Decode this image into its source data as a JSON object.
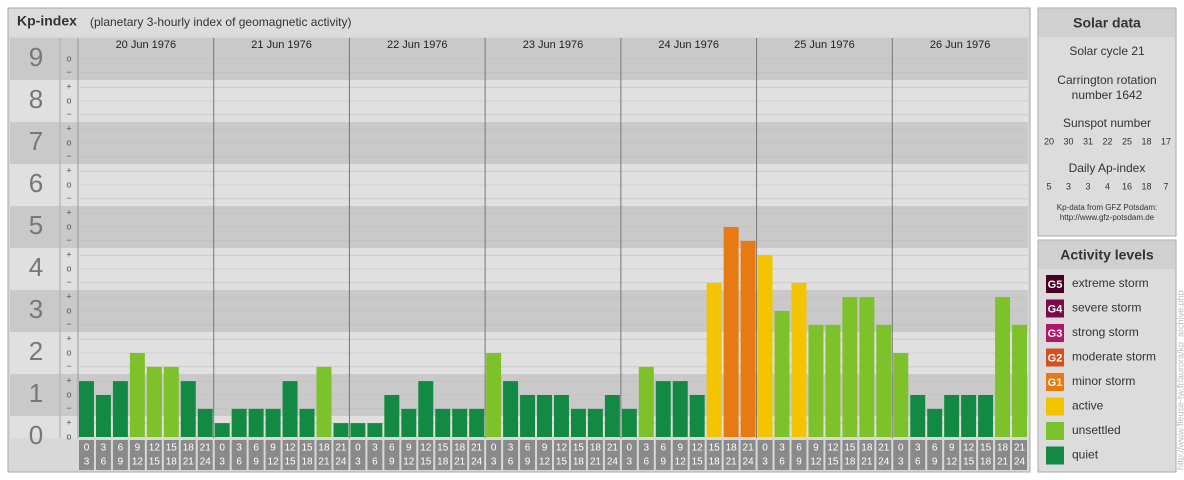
{
  "chart_data": {
    "type": "bar",
    "title": "Kp-index",
    "subtitle": "(planetary 3-hourly index of geomagnetic activity)",
    "days": [
      "20 Jun 1976",
      "21 Jun 1976",
      "22 Jun 1976",
      "23 Jun 1976",
      "24 Jun 1976",
      "25 Jun 1976",
      "26 Jun 1976"
    ],
    "hour_labels": [
      [
        "0",
        "3"
      ],
      [
        "3",
        "6"
      ],
      [
        "6",
        "9"
      ],
      [
        "9",
        "12"
      ],
      [
        "12",
        "15"
      ],
      [
        "15",
        "18"
      ],
      [
        "18",
        "21"
      ],
      [
        "21",
        "24"
      ]
    ],
    "values": [
      1.33,
      1,
      1.33,
      2,
      1.67,
      1.67,
      1.33,
      0.67,
      0.33,
      0.67,
      0.67,
      0.67,
      1.33,
      0.67,
      1.67,
      0.33,
      0.33,
      0.33,
      1,
      0.67,
      1.33,
      0.67,
      0.67,
      0.67,
      2,
      1.33,
      1,
      1,
      1,
      0.67,
      0.67,
      1,
      0.67,
      1.67,
      1.33,
      1.33,
      1,
      3.67,
      5,
      4.67,
      4.33,
      3,
      3.67,
      2.67,
      2.67,
      3.33,
      3.33,
      2.67,
      2,
      1,
      0.67,
      1,
      1,
      1,
      3.33,
      2.67
    ],
    "colors": [
      "#138a43",
      "#138a43",
      "#138a43",
      "#7dc12b",
      "#7dc12b",
      "#7dc12b",
      "#138a43",
      "#138a43",
      "#138a43",
      "#138a43",
      "#138a43",
      "#138a43",
      "#138a43",
      "#138a43",
      "#7dc12b",
      "#138a43",
      "#138a43",
      "#138a43",
      "#138a43",
      "#138a43",
      "#138a43",
      "#138a43",
      "#138a43",
      "#138a43",
      "#7dc12b",
      "#138a43",
      "#138a43",
      "#138a43",
      "#138a43",
      "#138a43",
      "#138a43",
      "#138a43",
      "#138a43",
      "#7dc12b",
      "#138a43",
      "#138a43",
      "#138a43",
      "#f5c400",
      "#e87a12",
      "#e87a12",
      "#f5c400",
      "#7dc12b",
      "#f5c400",
      "#7dc12b",
      "#7dc12b",
      "#7dc12b",
      "#7dc12b",
      "#7dc12b",
      "#7dc12b",
      "#138a43",
      "#138a43",
      "#138a43",
      "#138a43",
      "#138a43",
      "#7dc12b",
      "#7dc12b"
    ],
    "ylim": [
      0,
      9.5
    ],
    "yticks": [
      0,
      1,
      2,
      3,
      4,
      5,
      6,
      7,
      8,
      9
    ],
    "minor_yticks": [
      {
        "value": 0,
        "label": "o"
      },
      {
        "value": 0.33,
        "label": "+"
      },
      {
        "value": 0.67,
        "label": "−"
      },
      {
        "value": 1,
        "label": "o"
      },
      {
        "value": 1.33,
        "label": "+"
      },
      {
        "value": 1.67,
        "label": "−"
      },
      {
        "value": 2,
        "label": "o"
      },
      {
        "value": 2.33,
        "label": "+"
      },
      {
        "value": 2.67,
        "label": "−"
      },
      {
        "value": 3,
        "label": "o"
      },
      {
        "value": 3.33,
        "label": "+"
      },
      {
        "value": 3.67,
        "label": "−"
      },
      {
        "value": 4,
        "label": "o"
      },
      {
        "value": 4.33,
        "label": "+"
      },
      {
        "value": 4.67,
        "label": "−"
      },
      {
        "value": 5,
        "label": "o"
      },
      {
        "value": 5.33,
        "label": "+"
      },
      {
        "value": 5.67,
        "label": "−"
      },
      {
        "value": 6,
        "label": "o"
      },
      {
        "value": 6.33,
        "label": "+"
      },
      {
        "value": 6.67,
        "label": "−"
      },
      {
        "value": 7,
        "label": "o"
      },
      {
        "value": 7.33,
        "label": "+"
      },
      {
        "value": 7.67,
        "label": "−"
      },
      {
        "value": 8,
        "label": "o"
      },
      {
        "value": 8.33,
        "label": "+"
      },
      {
        "value": 8.67,
        "label": "−"
      },
      {
        "value": 9,
        "label": "o"
      }
    ],
    "grid": true
  },
  "solar_data": {
    "title": "Solar data",
    "cycle": "Solar cycle 21",
    "carrington": [
      "Carrington rotation",
      "number 1642"
    ],
    "sunspot_title": "Sunspot number",
    "sunspot": [
      20,
      30,
      31,
      22,
      25,
      18,
      17
    ],
    "ap_title": "Daily Ap-index",
    "ap": [
      5,
      3,
      3,
      4,
      16,
      18,
      7
    ],
    "source": [
      "Kp-data from GFZ Potsdam:",
      "http://www.gfz-potsdam.de"
    ]
  },
  "activity_levels": {
    "title": "Activity levels",
    "items": [
      {
        "badge": "G5",
        "label": "extreme storm",
        "color": "#4a0024"
      },
      {
        "badge": "G4",
        "label": "severe storm",
        "color": "#7a0a4a"
      },
      {
        "badge": "G3",
        "label": "strong storm",
        "color": "#b4156a"
      },
      {
        "badge": "G2",
        "label": "moderate storm",
        "color": "#d94f1c"
      },
      {
        "badge": "G1",
        "label": "minor storm",
        "color": "#e87a12"
      },
      {
        "label": "active",
        "color": "#f5c400"
      },
      {
        "label": "unsettled",
        "color": "#7dc12b"
      },
      {
        "label": "quiet",
        "color": "#138a43"
      }
    ]
  },
  "watermark": "http://www.fleuse-tw.fr/aurora/kp_archive.php"
}
